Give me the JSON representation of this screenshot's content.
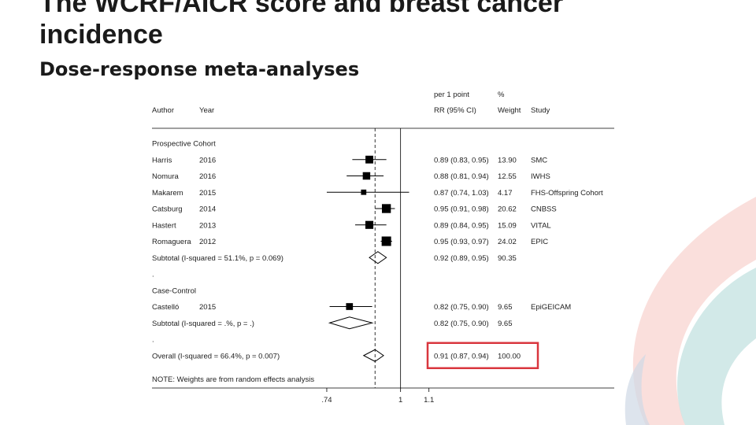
{
  "slide": {
    "title_line1": "The WCRF/AICR score and breast cancer",
    "title_line2": "incidence",
    "subtitle": "Dose-response meta-analyses"
  },
  "chart_data": {
    "type": "forest",
    "headers": {
      "author": "Author",
      "year": "Year",
      "rr_top": "per 1 point",
      "rr": "RR (95% CI)",
      "weight_top": "%",
      "weight": "Weight",
      "study": "Study"
    },
    "rows": [
      {
        "kind": "group",
        "label": "Prospective Cohort"
      },
      {
        "kind": "study",
        "author": "Harris",
        "year": "2016",
        "rr": 0.89,
        "lo": 0.83,
        "hi": 0.95,
        "ci_text": "0.89 (0.83, 0.95)",
        "weight": "13.90",
        "study": "SMC"
      },
      {
        "kind": "study",
        "author": "Nomura",
        "year": "2016",
        "rr": 0.88,
        "lo": 0.81,
        "hi": 0.94,
        "ci_text": "0.88 (0.81, 0.94)",
        "weight": "12.55",
        "study": "IWHS"
      },
      {
        "kind": "study",
        "author": "Makarem",
        "year": "2015",
        "rr": 0.87,
        "lo": 0.74,
        "hi": 1.03,
        "ci_text": "0.87 (0.74, 1.03)",
        "weight": "4.17",
        "study": "FHS-Offspring Cohort"
      },
      {
        "kind": "study",
        "author": "Catsburg",
        "year": "2014",
        "rr": 0.95,
        "lo": 0.91,
        "hi": 0.98,
        "ci_text": "0.95 (0.91, 0.98)",
        "weight": "20.62",
        "study": "CNBSS"
      },
      {
        "kind": "study",
        "author": "Hastert",
        "year": "2013",
        "rr": 0.89,
        "lo": 0.84,
        "hi": 0.95,
        "ci_text": "0.89 (0.84, 0.95)",
        "weight": "15.09",
        "study": "VITAL"
      },
      {
        "kind": "study",
        "author": "Romaguera",
        "year": "2012",
        "rr": 0.95,
        "lo": 0.93,
        "hi": 0.97,
        "ci_text": "0.95 (0.93, 0.97)",
        "weight": "24.02",
        "study": "EPIC"
      },
      {
        "kind": "subtotal",
        "label": "Subtotal  (I-squared = 51.1%, p = 0.069)",
        "rr": 0.92,
        "lo": 0.89,
        "hi": 0.95,
        "ci_text": "0.92 (0.89, 0.95)",
        "weight": "90.35"
      },
      {
        "kind": "spacer",
        "label": "."
      },
      {
        "kind": "group",
        "label": "Case-Control"
      },
      {
        "kind": "study",
        "author": "Castelló",
        "year": "2015",
        "rr": 0.82,
        "lo": 0.75,
        "hi": 0.9,
        "ci_text": "0.82 (0.75, 0.90)",
        "weight": "9.65",
        "study": "EpiGEICAM"
      },
      {
        "kind": "subtotal",
        "label": "Subtotal  (I-squared = .%, p = .)",
        "rr": 0.82,
        "lo": 0.75,
        "hi": 0.9,
        "ci_text": "0.82 (0.75, 0.90)",
        "weight": "9.65"
      },
      {
        "kind": "spacer",
        "label": "."
      },
      {
        "kind": "overall",
        "label": "Overall  (I-squared = 66.4%, p = 0.007)",
        "rr": 0.91,
        "lo": 0.87,
        "hi": 0.94,
        "ci_text": "0.91 (0.87, 0.94)",
        "weight": "100.00",
        "highlight": true
      }
    ],
    "note": "NOTE: Weights are from random effects analysis",
    "x_ticks": [
      {
        "value": 0.74,
        "label": ".74"
      },
      {
        "value": 1,
        "label": "1"
      },
      {
        "value": 1.1,
        "label": "1.1"
      }
    ],
    "xlim": [
      0.6,
      1.1
    ],
    "null_line": 1,
    "overall_line": 0.91,
    "highlight_color": "#d9363e",
    "marker_color": "#000000"
  }
}
